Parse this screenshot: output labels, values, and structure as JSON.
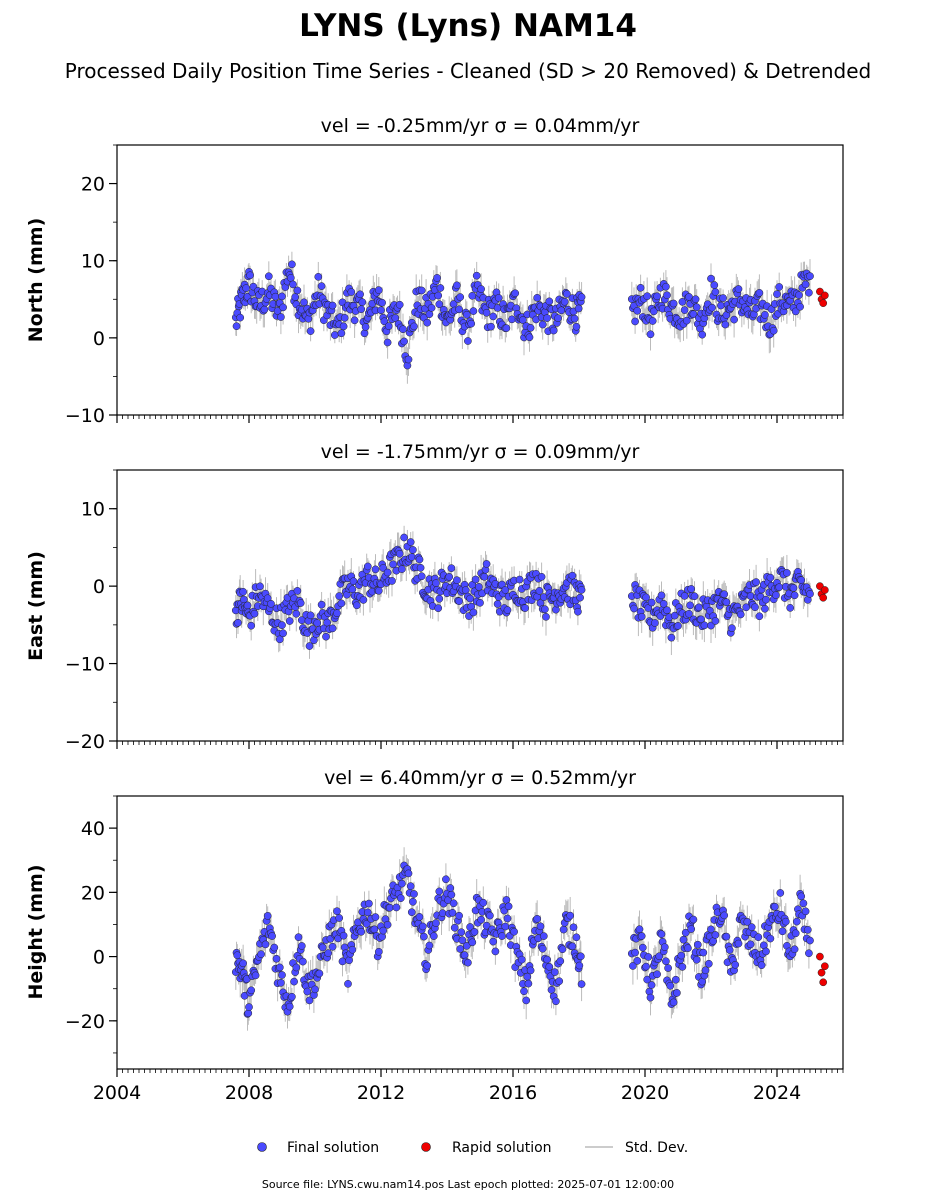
{
  "title": "LYNS (Lyns) NAM14",
  "subtitle": "Processed Daily Position Time Series - Cleaned (SD > 20 Removed) & Detrended",
  "footer": "Source file: LYNS.cwu.nam14.pos  Last epoch plotted: 2025-07-01 12:00:00",
  "legend": {
    "final": "Final solution",
    "rapid": "Rapid solution",
    "stddev": "Std. Dev."
  },
  "colors": {
    "final": "#4a4aff",
    "rapid": "#ee0000",
    "stddev": "#bbbbbb"
  },
  "chart_data": [
    {
      "type": "scatter",
      "title": "vel = -0.25mm/yr   σ = 0.04mm/yr",
      "ylabel": "North (mm)",
      "xlim": [
        2004,
        2026
      ],
      "ylim": [
        -10,
        25
      ],
      "yticks": [
        -10,
        0,
        10,
        20
      ],
      "xticks": [
        2004,
        2008,
        2012,
        2016,
        2020,
        2024
      ],
      "series": [
        {
          "name": "Final solution",
          "x": [
            2007.6,
            2007.8,
            2008.0,
            2008.3,
            2008.6,
            2008.9,
            2009.2,
            2009.5,
            2009.8,
            2010.1,
            2010.4,
            2010.7,
            2011.0,
            2011.3,
            2011.6,
            2011.9,
            2012.2,
            2012.5,
            2012.8,
            2013.1,
            2013.4,
            2013.7,
            2014.0,
            2014.3,
            2014.6,
            2014.9,
            2015.2,
            2015.5,
            2015.8,
            2016.1,
            2016.4,
            2016.7,
            2017.0,
            2017.3,
            2017.6,
            2017.9,
            2018.1,
            2019.6,
            2019.9,
            2020.2,
            2020.5,
            2020.8,
            2021.1,
            2021.4,
            2021.7,
            2022.0,
            2022.3,
            2022.6,
            2022.9,
            2023.2,
            2023.5,
            2023.8,
            2024.1,
            2024.4,
            2024.7,
            2025.0
          ],
          "y": [
            2,
            5,
            7,
            4,
            6,
            3,
            9,
            5,
            2,
            6,
            3,
            1,
            5,
            4,
            2,
            6,
            1,
            4,
            -2,
            5,
            3,
            7,
            2,
            5,
            1,
            6,
            3,
            4,
            2,
            5,
            1,
            4,
            3,
            2,
            5,
            3,
            4,
            3,
            5,
            2,
            6,
            4,
            3,
            5,
            2,
            6,
            3,
            4,
            5,
            3,
            4,
            2,
            5,
            4,
            6,
            8
          ]
        },
        {
          "name": "Rapid solution",
          "x": [
            2025.3,
            2025.35,
            2025.4,
            2025.45
          ],
          "y": [
            6,
            5,
            4.5,
            5.5
          ]
        }
      ]
    },
    {
      "type": "scatter",
      "title": "vel = -1.75mm/yr   σ = 0.09mm/yr",
      "ylabel": "East (mm)",
      "xlim": [
        2004,
        2026
      ],
      "ylim": [
        -20,
        15
      ],
      "yticks": [
        -20,
        -10,
        0,
        10
      ],
      "xticks": [
        2004,
        2008,
        2012,
        2016,
        2020,
        2024
      ],
      "series": [
        {
          "name": "Final solution",
          "x": [
            2007.6,
            2007.8,
            2008.0,
            2008.3,
            2008.6,
            2008.9,
            2009.2,
            2009.5,
            2009.8,
            2010.1,
            2010.4,
            2010.7,
            2011.0,
            2011.3,
            2011.6,
            2011.9,
            2012.2,
            2012.5,
            2012.8,
            2013.1,
            2013.4,
            2013.7,
            2014.0,
            2014.3,
            2014.6,
            2014.9,
            2015.2,
            2015.5,
            2015.8,
            2016.1,
            2016.4,
            2016.7,
            2017.0,
            2017.3,
            2017.6,
            2017.9,
            2018.1,
            2019.6,
            2019.9,
            2020.2,
            2020.5,
            2020.8,
            2021.1,
            2021.4,
            2021.7,
            2022.0,
            2022.3,
            2022.6,
            2022.9,
            2023.2,
            2023.5,
            2023.8,
            2024.1,
            2024.4,
            2024.7,
            2025.0
          ],
          "y": [
            -3,
            -2,
            -4,
            -1,
            -3,
            -5,
            -3,
            -2,
            -6,
            -4,
            -5,
            -2,
            0,
            -1,
            1,
            0,
            2,
            3,
            5,
            2,
            0,
            -1,
            1,
            0,
            -2,
            -1,
            1,
            -1,
            -2,
            0,
            -1,
            1,
            -2,
            -1,
            0,
            -1,
            -2,
            -1,
            -3,
            -4,
            -2,
            -5,
            -3,
            -2,
            -4,
            -3,
            -2,
            -4,
            -3,
            -1,
            -2,
            0,
            1,
            -1,
            0,
            -1
          ]
        },
        {
          "name": "Rapid solution",
          "x": [
            2025.3,
            2025.35,
            2025.4,
            2025.45
          ],
          "y": [
            0,
            -1,
            -1.5,
            -0.5
          ]
        }
      ]
    },
    {
      "type": "scatter",
      "title": "vel = 6.40mm/yr   σ = 0.52mm/yr",
      "ylabel": "Height (mm)",
      "xlim": [
        2004,
        2026
      ],
      "ylim": [
        -35,
        50
      ],
      "yticks": [
        -20,
        0,
        20,
        40
      ],
      "xticks": [
        2004,
        2008,
        2012,
        2016,
        2020,
        2024
      ],
      "series": [
        {
          "name": "Final solution",
          "x": [
            2007.6,
            2007.8,
            2008.0,
            2008.3,
            2008.6,
            2008.9,
            2009.2,
            2009.5,
            2009.8,
            2010.1,
            2010.4,
            2010.7,
            2011.0,
            2011.3,
            2011.6,
            2011.9,
            2012.2,
            2012.5,
            2012.8,
            2013.1,
            2013.4,
            2013.7,
            2014.0,
            2014.3,
            2014.6,
            2014.9,
            2015.2,
            2015.5,
            2015.8,
            2016.1,
            2016.4,
            2016.7,
            2017.0,
            2017.3,
            2017.6,
            2017.9,
            2018.1,
            2019.6,
            2019.9,
            2020.2,
            2020.5,
            2020.8,
            2021.1,
            2021.4,
            2021.7,
            2022.0,
            2022.3,
            2022.6,
            2022.9,
            2023.2,
            2023.5,
            2023.8,
            2024.1,
            2024.4,
            2024.7,
            2025.0
          ],
          "y": [
            0,
            -5,
            -15,
            0,
            10,
            -5,
            -15,
            5,
            -10,
            -5,
            5,
            10,
            -5,
            10,
            15,
            5,
            15,
            20,
            25,
            10,
            0,
            15,
            20,
            10,
            0,
            15,
            10,
            5,
            15,
            0,
            -10,
            10,
            0,
            -10,
            10,
            5,
            -5,
            0,
            5,
            -10,
            5,
            -15,
            0,
            10,
            -5,
            5,
            15,
            -5,
            10,
            5,
            0,
            10,
            15,
            0,
            15,
            5
          ]
        },
        {
          "name": "Rapid solution",
          "x": [
            2025.3,
            2025.35,
            2025.4,
            2025.45
          ],
          "y": [
            0,
            -5,
            -8,
            -3
          ]
        }
      ]
    }
  ]
}
